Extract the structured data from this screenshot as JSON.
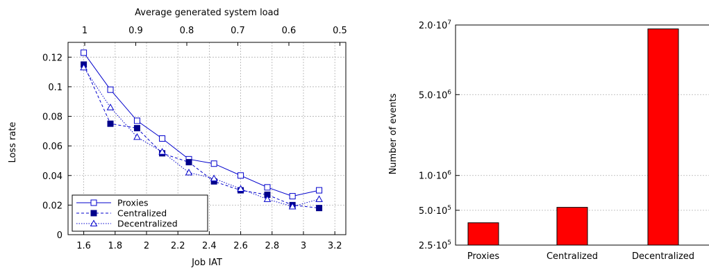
{
  "chart_data": [
    {
      "type": "line",
      "title": "",
      "xlabel": "Job IAT",
      "ylabel": "Loss rate",
      "top_xlabel": "Average generated system load",
      "xlim": [
        1.5,
        3.27
      ],
      "ylim": [
        0,
        0.13
      ],
      "x_ticks": [
        "1.6",
        "1.8",
        "2",
        "2.2",
        "2.4",
        "2.6",
        "2.8",
        "3",
        "3.2"
      ],
      "y_ticks": [
        "0",
        "0.02",
        "0.04",
        "0.06",
        "0.08",
        "0.1",
        "0.12"
      ],
      "top_ticks": [
        "1",
        "0.9",
        "0.8",
        "0.7",
        "0.6",
        "0.5"
      ],
      "grid": true,
      "legend_position": "bottom-left",
      "x": [
        1.6,
        1.77,
        1.94,
        2.1,
        2.27,
        2.43,
        2.6,
        2.77,
        2.93,
        3.1
      ],
      "series": [
        {
          "name": "Proxies",
          "style": "solid",
          "marker": "open-square",
          "values": [
            0.123,
            0.098,
            0.077,
            0.065,
            0.051,
            0.048,
            0.04,
            0.032,
            0.026,
            0.03
          ]
        },
        {
          "name": "Centralized",
          "style": "dashed",
          "marker": "filled-square",
          "values": [
            0.115,
            0.075,
            0.072,
            0.055,
            0.049,
            0.036,
            0.03,
            0.027,
            0.02,
            0.018
          ]
        },
        {
          "name": "Decentralized",
          "style": "dotted",
          "marker": "open-triangle",
          "values": [
            0.113,
            0.086,
            0.066,
            0.056,
            0.042,
            0.038,
            0.031,
            0.024,
            0.019,
            0.024
          ]
        }
      ]
    },
    {
      "type": "bar",
      "title": "",
      "xlabel": "",
      "ylabel": "Number of events",
      "log_scale_y": true,
      "ylim": [
        250000,
        20000000
      ],
      "y_ticks": [
        {
          "value": 250000,
          "mantissa": "2.5",
          "base": "·10",
          "exp": "5"
        },
        {
          "value": 500000,
          "mantissa": "5.0",
          "base": "·10",
          "exp": "5"
        },
        {
          "value": 1000000,
          "mantissa": "1.0",
          "base": "·10",
          "exp": "6"
        },
        {
          "value": 5000000,
          "mantissa": "5.0",
          "base": "·10",
          "exp": "6"
        },
        {
          "value": 20000000,
          "mantissa": "2.0",
          "base": "·10",
          "exp": "7"
        }
      ],
      "categories": [
        "Proxies",
        "Centralized",
        "Decentralized"
      ],
      "values": [
        390000,
        530000,
        18500000
      ],
      "bar_color": "#ff0000",
      "grid": true
    }
  ]
}
